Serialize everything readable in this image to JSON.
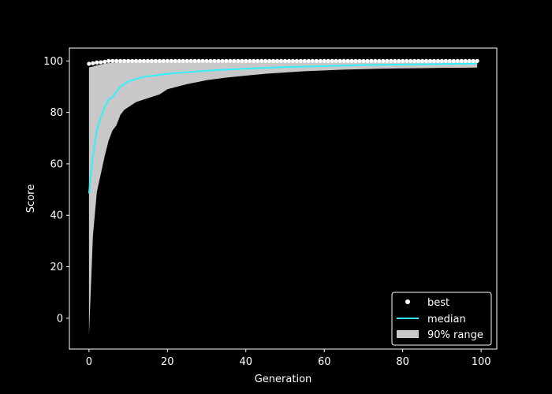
{
  "chart_data": {
    "type": "line",
    "xlabel": "Generation",
    "ylabel": "Score",
    "xlim": [
      -5,
      104
    ],
    "ylim": [
      -12,
      105
    ],
    "xticks": [
      0,
      20,
      40,
      60,
      80,
      100
    ],
    "yticks": [
      0,
      20,
      40,
      60,
      80,
      100
    ],
    "grid": false,
    "legend_position": "lower-right",
    "colors": {
      "background": "#000000",
      "axes": "#ffffff",
      "best": "#ffffff",
      "median": "#33f0ff",
      "range": "#c8c8c8"
    },
    "series": [
      {
        "name": "best",
        "kind": "markers",
        "x": [
          0,
          1,
          2,
          3,
          4,
          5,
          6,
          7,
          8,
          9,
          10,
          11,
          12,
          13,
          14,
          15,
          16,
          17,
          18,
          19,
          20,
          21,
          22,
          23,
          24,
          25,
          26,
          27,
          28,
          29,
          30,
          31,
          32,
          33,
          34,
          35,
          36,
          37,
          38,
          39,
          40,
          41,
          42,
          43,
          44,
          45,
          46,
          47,
          48,
          49,
          50,
          51,
          52,
          53,
          54,
          55,
          56,
          57,
          58,
          59,
          60,
          61,
          62,
          63,
          64,
          65,
          66,
          67,
          68,
          69,
          70,
          71,
          72,
          73,
          74,
          75,
          76,
          77,
          78,
          79,
          80,
          81,
          82,
          83,
          84,
          85,
          86,
          87,
          88,
          89,
          90,
          91,
          92,
          93,
          94,
          95,
          96,
          97,
          98,
          99
        ],
        "y": [
          98.9,
          99.1,
          99.4,
          99.5,
          99.7,
          100,
          100,
          100,
          100,
          100,
          100,
          100,
          100,
          100,
          100,
          100,
          100,
          100,
          100,
          100,
          100,
          100,
          100,
          100,
          100,
          100,
          100,
          100,
          100,
          100,
          100,
          100,
          100,
          100,
          100,
          100,
          100,
          100,
          100,
          100,
          100,
          100,
          100,
          100,
          100,
          100,
          100,
          100,
          100,
          100,
          100,
          100,
          100,
          100,
          100,
          100,
          100,
          100,
          100,
          100,
          100,
          100,
          100,
          100,
          100,
          100,
          100,
          100,
          100,
          100,
          100,
          100,
          100,
          100,
          100,
          100,
          100,
          100,
          100,
          100,
          100,
          100,
          100,
          100,
          100,
          100,
          100,
          100,
          100,
          100,
          100,
          100,
          100,
          100,
          100,
          100,
          100,
          100,
          100,
          100
        ]
      },
      {
        "name": "median",
        "kind": "line",
        "x": [
          0,
          1,
          2,
          3,
          4,
          5,
          6,
          7,
          8,
          9,
          10,
          12,
          14,
          16,
          18,
          20,
          25,
          30,
          35,
          40,
          45,
          50,
          55,
          60,
          65,
          70,
          75,
          80,
          85,
          90,
          95,
          99
        ],
        "y": [
          48.5,
          63,
          73,
          78,
          82,
          85,
          86,
          88,
          90,
          91,
          92,
          93,
          93.8,
          94.2,
          94.6,
          95,
          95.6,
          96.2,
          96.6,
          97,
          97.3,
          97.6,
          97.8,
          98,
          98.2,
          98.4,
          98.5,
          98.6,
          98.7,
          98.8,
          98.9,
          99
        ]
      },
      {
        "name": "90% range",
        "kind": "band",
        "x": [
          0,
          1,
          2,
          3,
          4,
          5,
          6,
          7,
          8,
          9,
          10,
          12,
          14,
          16,
          18,
          20,
          25,
          30,
          35,
          40,
          45,
          50,
          55,
          60,
          65,
          70,
          75,
          80,
          85,
          90,
          95,
          99
        ],
        "lower": [
          -7,
          32,
          49,
          56,
          63,
          69,
          73,
          75,
          79,
          81,
          82,
          84,
          85,
          86,
          87,
          89,
          91,
          92.5,
          93.5,
          94.3,
          95,
          95.5,
          96,
          96.3,
          96.6,
          96.8,
          97,
          97.1,
          97.2,
          97.3,
          97.35,
          97.4
        ],
        "upper": [
          97.5,
          97.8,
          98.3,
          98.6,
          98.9,
          99.2,
          99.3,
          99.4,
          99.5,
          99.5,
          99.5,
          99.6,
          99.6,
          99.6,
          99.6,
          99.6,
          99.6,
          99.6,
          99.6,
          99.6,
          99.6,
          99.6,
          99.6,
          99.6,
          99.6,
          99.6,
          99.6,
          99.6,
          99.6,
          99.6,
          99.6,
          99.6
        ]
      }
    ]
  }
}
